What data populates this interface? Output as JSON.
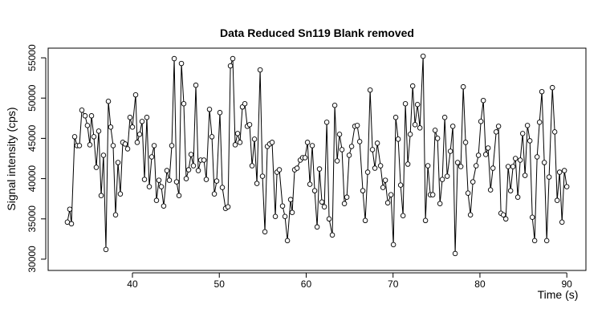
{
  "chart_data": {
    "type": "line-points",
    "title": "Data Reduced Sn119 Blank removed",
    "x_label": "Time (s)",
    "y_label": "Signal intensity (cps)",
    "xlim": [
      30.3,
      92.2
    ],
    "ylim": [
      28600,
      56200
    ],
    "xticks": [
      40,
      50,
      60,
      70,
      80,
      90
    ],
    "yticks": [
      30000,
      35000,
      40000,
      45000,
      50000,
      55000
    ],
    "color": "#000000",
    "x": [
      32.51,
      32.79,
      32.98,
      33.35,
      33.62,
      33.9,
      34.18,
      34.55,
      34.82,
      35.1,
      35.29,
      35.56,
      35.84,
      36.12,
      36.4,
      36.67,
      36.95,
      37.23,
      37.5,
      37.78,
      38.06,
      38.34,
      38.61,
      38.89,
      39.17,
      39.45,
      39.72,
      40,
      40.37,
      40.55,
      40.83,
      41.11,
      41.39,
      41.66,
      41.94,
      42.22,
      42.5,
      42.77,
      43.05,
      43.33,
      43.6,
      43.97,
      44.25,
      44.53,
      44.81,
      45.08,
      45.36,
      45.64,
      45.91,
      46.19,
      46.47,
      46.75,
      47.02,
      47.3,
      47.58,
      47.86,
      48.23,
      48.5,
      48.87,
      49.15,
      49.43,
      49.7,
      50.07,
      50.35,
      50.72,
      51,
      51.28,
      51.55,
      51.83,
      52.11,
      52.38,
      52.66,
      52.94,
      53.22,
      53.49,
      53.77,
      54.05,
      54.33,
      54.7,
      54.97,
      55.25,
      55.53,
      55.8,
      56.08,
      56.45,
      56.64,
      56.91,
      57.28,
      57.56,
      57.84,
      58.21,
      58.39,
      58.67,
      58.95,
      59.32,
      59.59,
      59.87,
      60.15,
      60.43,
      60.7,
      60.98,
      61.26,
      61.53,
      61.81,
      62.09,
      62.37,
      62.64,
      63.01,
      63.29,
      63.57,
      63.84,
      64.12,
      64.4,
      64.68,
      64.95,
      65.23,
      65.6,
      65.88,
      66.16,
      66.52,
      66.8,
      67.08,
      67.36,
      67.63,
      67.91,
      68.19,
      68.56,
      68.84,
      69.11,
      69.39,
      69.76,
      70.04,
      70.31,
      70.59,
      70.87,
      71.15,
      71.42,
      71.7,
      71.98,
      72.26,
      72.53,
      72.81,
      73.09,
      73.46,
      73.73,
      74.01,
      74.29,
      74.57,
      74.84,
      75.12,
      75.4,
      75.67,
      75.95,
      76.23,
      76.6,
      76.88,
      77.15,
      77.43,
      77.8,
      78.08,
      78.35,
      78.63,
      78.91,
      79.19,
      79.56,
      79.83,
      80.11,
      80.39,
      80.67,
      80.94,
      81.22,
      81.5,
      81.87,
      82.14,
      82.42,
      82.7,
      82.98,
      83.25,
      83.53,
      83.81,
      84.09,
      84.36,
      84.64,
      84.92,
      85.19,
      85.47,
      85.75,
      86.03,
      86.3,
      86.58,
      86.86,
      87.13,
      87.41,
      87.69,
      87.96,
      88.34,
      88.61,
      88.89,
      89.17,
      89.45,
      89.72,
      90
    ],
    "values": [
      34600,
      36200,
      34400,
      45200,
      44100,
      44100,
      48500,
      47800,
      46600,
      44200,
      47800,
      45200,
      41400,
      45900,
      37900,
      42900,
      31200,
      49600,
      46400,
      44100,
      35500,
      42000,
      38100,
      44500,
      44300,
      43700,
      47600,
      46400,
      50400,
      44500,
      45500,
      47100,
      39900,
      47600,
      39000,
      42700,
      44100,
      37300,
      39800,
      39000,
      36600,
      41000,
      39800,
      44100,
      54900,
      39600,
      37900,
      54300,
      49300,
      40000,
      41100,
      43000,
      41600,
      51600,
      41000,
      42300,
      42300,
      39900,
      48600,
      45200,
      38100,
      39700,
      48200,
      38900,
      36300,
      36500,
      54000,
      54900,
      44200,
      45600,
      44500,
      48900,
      49300,
      46500,
      46700,
      41600,
      44900,
      39400,
      53500,
      40300,
      33400,
      44000,
      44300,
      44500,
      35300,
      40800,
      41100,
      36600,
      35300,
      32300,
      37400,
      35800,
      41100,
      41300,
      42300,
      42600,
      42600,
      44500,
      39300,
      44100,
      38500,
      34000,
      41200,
      37100,
      36500,
      47000,
      35000,
      33000,
      49100,
      42200,
      45500,
      43600,
      36900,
      37700,
      42900,
      44000,
      46500,
      46600,
      44600,
      38500,
      34800,
      40800,
      51000,
      43600,
      41300,
      44400,
      41600,
      38900,
      39800,
      37000,
      38000,
      31800,
      47600,
      44900,
      39200,
      35400,
      49300,
      41800,
      45500,
      51500,
      46700,
      49200,
      46300,
      55200,
      34800,
      41600,
      38000,
      38000,
      46000,
      45000,
      36900,
      39900,
      47600,
      40300,
      43400,
      46500,
      30700,
      42000,
      41500,
      51400,
      44500,
      38200,
      35500,
      39600,
      41600,
      42900,
      47100,
      49700,
      43000,
      43800,
      38600,
      41300,
      45800,
      46500,
      35700,
      35500,
      35000,
      41500,
      38500,
      41500,
      42500,
      37700,
      42300,
      45600,
      40400,
      46600,
      44700,
      35200,
      32300,
      42700,
      47000,
      50800,
      42000,
      32300,
      40200,
      51300,
      45800,
      37300,
      40800,
      34600,
      41000,
      39000
    ]
  }
}
